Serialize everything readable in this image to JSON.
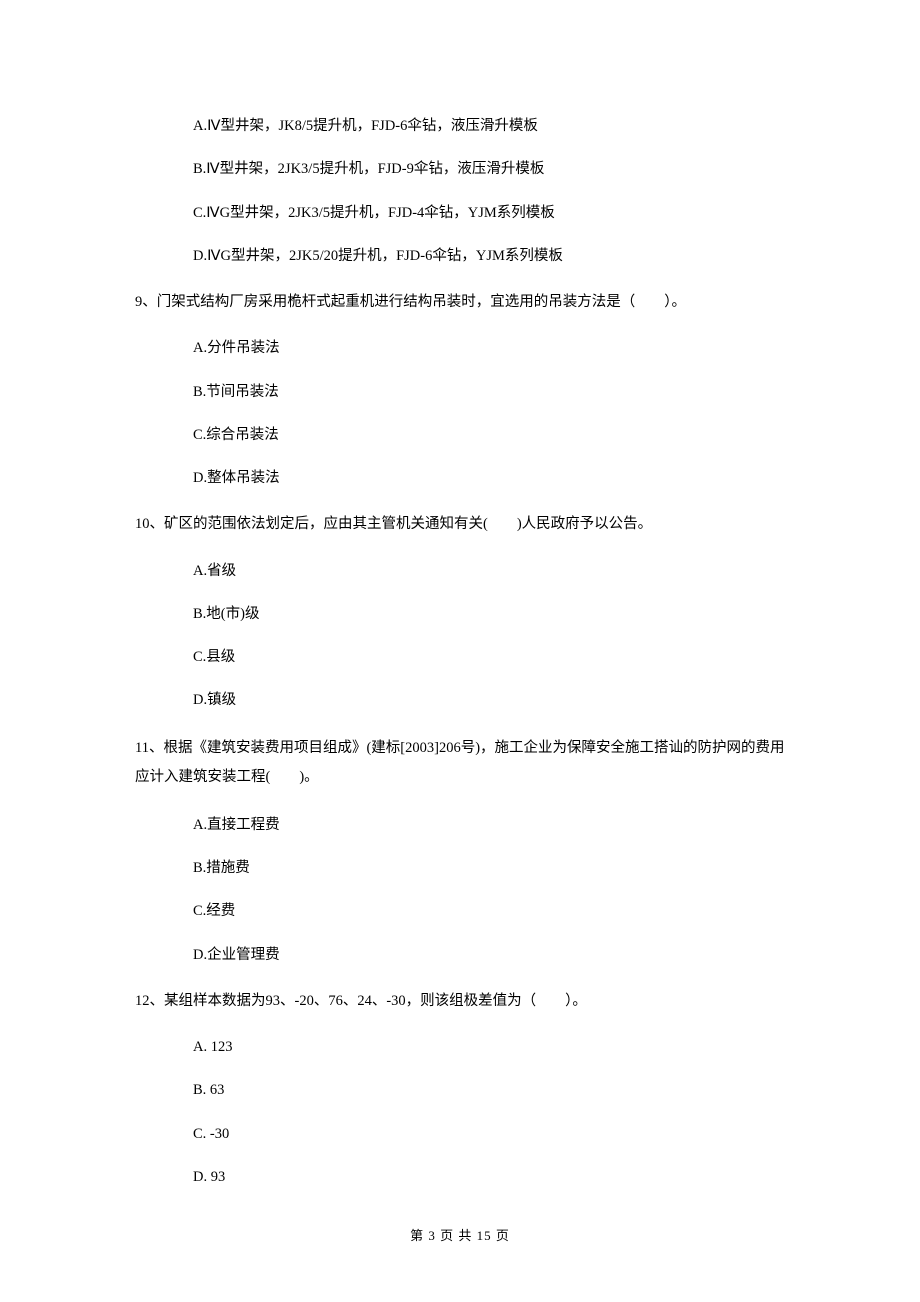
{
  "q8_options": {
    "a": "A.Ⅳ型井架，JK8/5提升机，FJD‐6伞钻，液压滑升模板",
    "b": "B.Ⅳ型井架，2JK3/5提升机，FJD‐9伞钻，液压滑升模板",
    "c": "C.ⅣG型井架，2JK3/5提升机，FJD‐4伞钻，YJM系列模板",
    "d": "D.ⅣG型井架，2JK5/20提升机，FJD‐6伞钻，YJM系列模板"
  },
  "q9": {
    "text": "9、门架式结构厂房采用桅杆式起重机进行结构吊装时，宜选用的吊装方法是（　　）。",
    "a": "A.分件吊装法",
    "b": "B.节间吊装法",
    "c": "C.综合吊装法",
    "d": "D.整体吊装法"
  },
  "q10": {
    "text": "10、矿区的范围依法划定后，应由其主管机关通知有关(　　)人民政府予以公告。",
    "a": "A.省级",
    "b": "B.地(市)级",
    "c": "C.县级",
    "d": "D.镇级"
  },
  "q11": {
    "text": "11、根据《建筑安装费用项目组成》(建标[2003]206号)，施工企业为保障安全施工搭讪的防护网的费用应计入建筑安装工程(　　)。",
    "a": "A.直接工程费",
    "b": "B.措施费",
    "c": "C.经费",
    "d": "D.企业管理费"
  },
  "q12": {
    "text": "12、某组样本数据为93、-20、76、24、-30，则该组极差值为（　　）。",
    "a": "A.  123",
    "b": "B.  63",
    "c": "C.  -30",
    "d": "D.  93"
  },
  "footer": "第 3 页 共 15 页"
}
